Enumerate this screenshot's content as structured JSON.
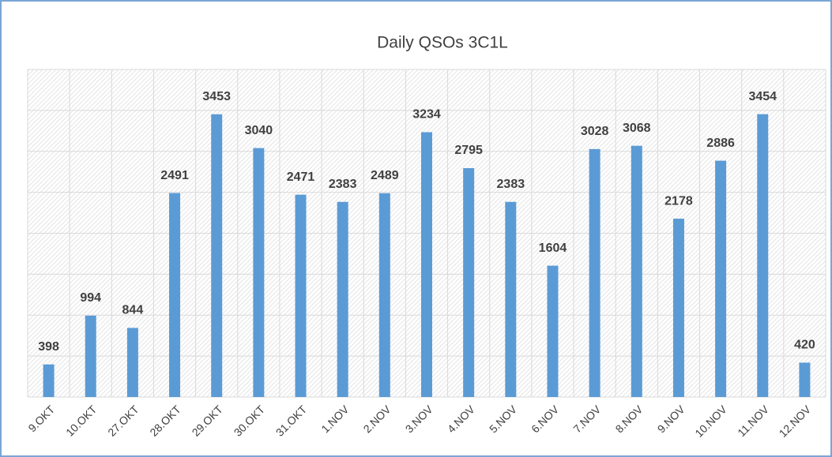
{
  "chart_data": {
    "type": "bar",
    "title": "Daily QSOs 3C1L",
    "categories": [
      "9.OKT",
      "10.OKT",
      "27.OKT",
      "28.OKT",
      "29.OKT",
      "30.OKT",
      "31.OKT",
      "1.NOV",
      "2.NOV",
      "3.NOV",
      "4.NOV",
      "5.NOV",
      "6.NOV",
      "7.NOV",
      "8.NOV",
      "9.NOV",
      "10.NOV",
      "11.NOV",
      "12.NOV"
    ],
    "values": [
      398,
      994,
      844,
      2491,
      3453,
      3040,
      2471,
      2383,
      2489,
      3234,
      2795,
      2383,
      1604,
      3028,
      3068,
      2178,
      2886,
      3454,
      420
    ],
    "color": "#5b9bd5",
    "ylim": [
      0,
      4000
    ],
    "yticks": [
      0,
      500,
      1000,
      1500,
      2000,
      2500,
      3000,
      3500,
      4000
    ],
    "grid": true
  }
}
